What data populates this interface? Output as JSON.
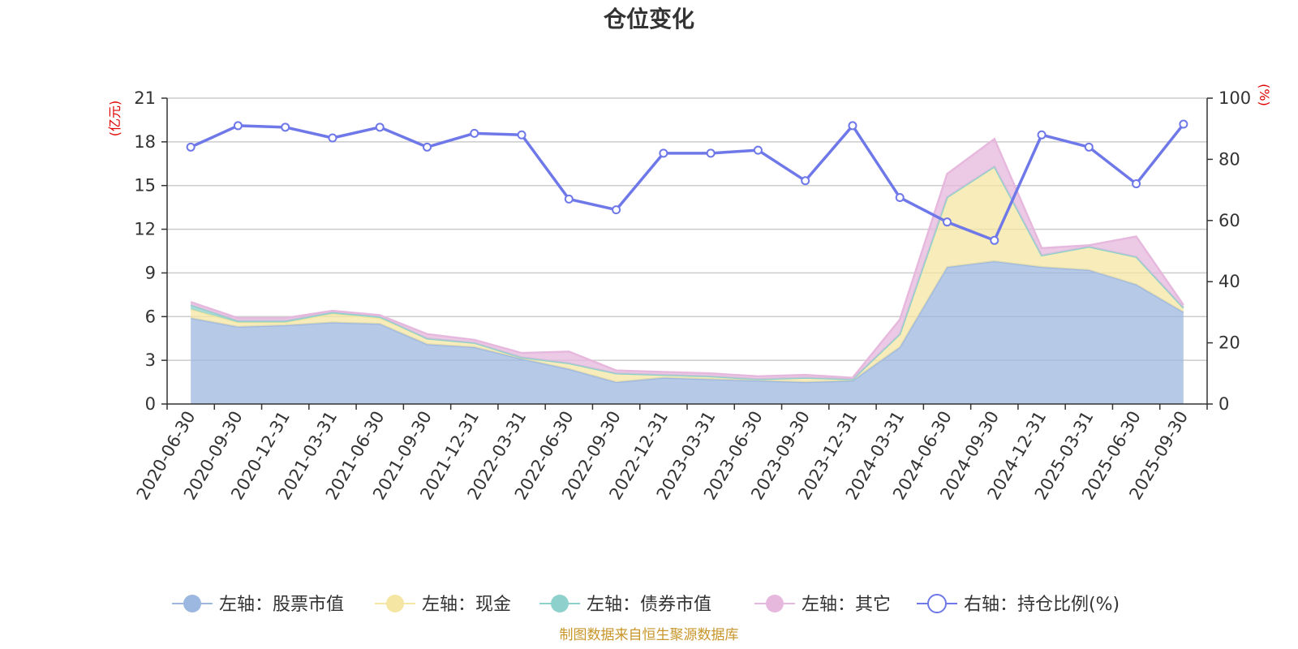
{
  "chart_data": {
    "type": "area",
    "title": "仓位变化",
    "source": "制图数据来自恒生聚源数据库",
    "left_unit": "(亿元)",
    "right_unit": "(%)",
    "left_ylim": [
      0,
      21
    ],
    "left_ticks": [
      0,
      3,
      6,
      9,
      12,
      15,
      18,
      21
    ],
    "right_ylim": [
      0,
      100
    ],
    "right_ticks": [
      0,
      20,
      40,
      60,
      80,
      100
    ],
    "categories": [
      "2020-06-30",
      "2020-09-30",
      "2020-12-31",
      "2021-03-31",
      "2021-06-30",
      "2021-09-30",
      "2021-12-31",
      "2022-03-31",
      "2022-06-30",
      "2022-09-30",
      "2022-12-31",
      "2023-03-31",
      "2023-06-30",
      "2023-09-30",
      "2023-12-31",
      "2024-03-31",
      "2024-06-30",
      "2024-09-30",
      "2024-12-31",
      "2025-03-31",
      "2025-06-30",
      "2025-09-30"
    ],
    "series": [
      {
        "name": "左轴：股票市值",
        "axis": "left",
        "color": "#9db8e0",
        "values": [
          5.9,
          5.3,
          5.4,
          5.6,
          5.5,
          4.1,
          3.9,
          3.1,
          2.4,
          1.5,
          1.8,
          1.7,
          1.6,
          1.5,
          1.6,
          3.9,
          9.4,
          9.8,
          9.4,
          9.2,
          8.2,
          6.3
        ]
      },
      {
        "name": "左轴：现金",
        "axis": "left",
        "color": "#f5e6a3",
        "values": [
          0.6,
          0.3,
          0.2,
          0.6,
          0.4,
          0.4,
          0.3,
          0.1,
          0.4,
          0.6,
          0.2,
          0.2,
          0.1,
          0.3,
          0.1,
          0.9,
          4.8,
          6.5,
          0.8,
          1.6,
          1.9,
          0.3
        ]
      },
      {
        "name": "左轴：债券市值",
        "axis": "left",
        "color": "#8ed1cc",
        "values": [
          0.3,
          0.1,
          0.1,
          0.1,
          0.1,
          0,
          0,
          0,
          0,
          0,
          0,
          0,
          0,
          0,
          0,
          0,
          0,
          0,
          0,
          0,
          0,
          0
        ]
      },
      {
        "name": "左轴：其它",
        "axis": "left",
        "color": "#e6b8dd",
        "values": [
          0.2,
          0.2,
          0.2,
          0.1,
          0.1,
          0.3,
          0.2,
          0.3,
          0.8,
          0.2,
          0.2,
          0.2,
          0.2,
          0.2,
          0.1,
          1.0,
          1.6,
          1.9,
          0.5,
          0.1,
          1.4,
          0.2
        ]
      },
      {
        "name": "右轴：持仓比例(%)",
        "axis": "right",
        "color": "#6f78e8",
        "values": [
          84,
          91,
          90.5,
          87,
          90.5,
          84,
          88.5,
          88,
          67,
          63.5,
          82,
          82,
          83,
          73,
          91,
          67.5,
          59.5,
          53.5,
          88,
          84,
          72,
          91.5
        ]
      }
    ]
  }
}
